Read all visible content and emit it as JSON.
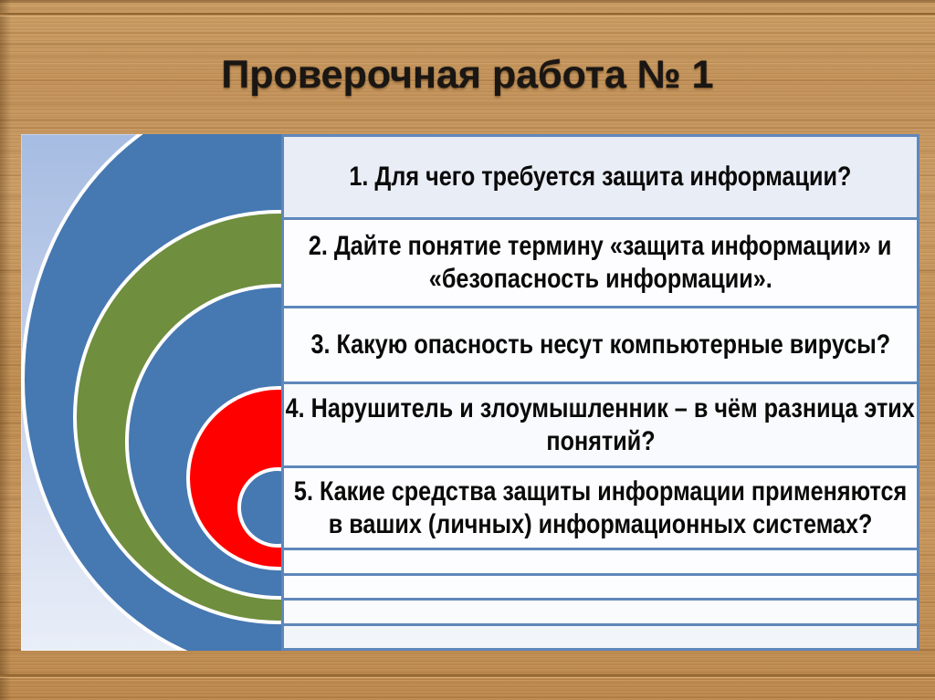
{
  "slide": {
    "title": "Проверочная работа № 1"
  },
  "questions": [
    {
      "number": 1,
      "lines": [
        "1. Для чего требуется защита информации?"
      ]
    },
    {
      "number": 2,
      "lines": [
        "2. Дайте понятие термину «защита информации» и",
        "«безопасность информации»."
      ]
    },
    {
      "number": 3,
      "lines": [
        "3. Какую опасность несут компьютерные вирусы?"
      ]
    },
    {
      "number": 4,
      "lines": [
        "4. Нарушитель и злоумышленник – в чём разница этих",
        "понятий?"
      ]
    },
    {
      "number": 5,
      "lines": [
        "5. Какие средства защиты информации применяются",
        "в ваших (личных) информационных системах?"
      ]
    }
  ],
  "empty_answer_rows": 4,
  "colors": {
    "ring_blue": "#4678b2",
    "ring_green": "#6f8e3e",
    "ring_red": "#fe0000",
    "ring_stroke": "#ffffff",
    "row_border": "#5f87bb",
    "row1_background": "#e9edf6",
    "row_background": "#fdfdff",
    "panel_gradient_top": "#a6bce2",
    "panel_gradient_bottom": "#e9eef8",
    "title_color": "#1a1613",
    "wood_base": "#c2925a"
  }
}
